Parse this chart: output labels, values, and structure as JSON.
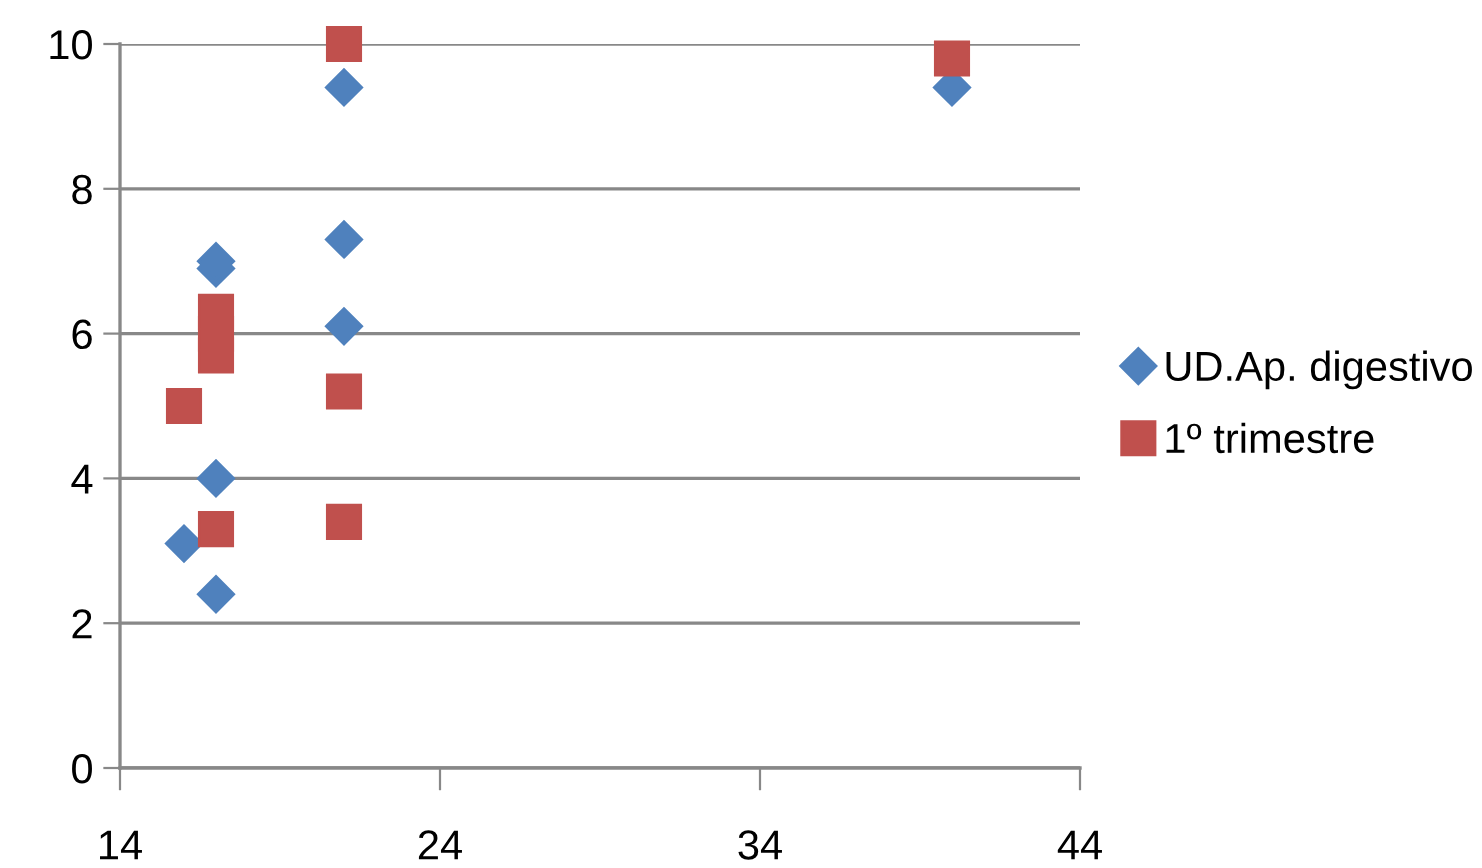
{
  "chart_data": {
    "type": "scatter",
    "xlim": [
      14,
      44
    ],
    "xticks": [
      14,
      24,
      34,
      44
    ],
    "ylim": [
      0,
      10
    ],
    "yticks": [
      0,
      2,
      4,
      6,
      8,
      10
    ],
    "grid": "y",
    "legend": "right",
    "series": [
      {
        "name": "UD.Ap. digestivo",
        "color": "#4f81bd",
        "marker": "diamond",
        "x": [
          16,
          17,
          17,
          17,
          17,
          21,
          21,
          21,
          40
        ],
        "values": [
          3.1,
          2.4,
          4.0,
          6.9,
          7.0,
          9.4,
          7.3,
          6.1,
          9.4
        ]
      },
      {
        "name": "1º trimestre",
        "color": "#c0504d",
        "marker": "square",
        "x": [
          16,
          17,
          17,
          17,
          17,
          21,
          21,
          21,
          40
        ],
        "values": [
          5.0,
          3.3,
          5.7,
          6.0,
          6.3,
          10,
          5.2,
          3.4,
          9.8
        ]
      }
    ]
  }
}
